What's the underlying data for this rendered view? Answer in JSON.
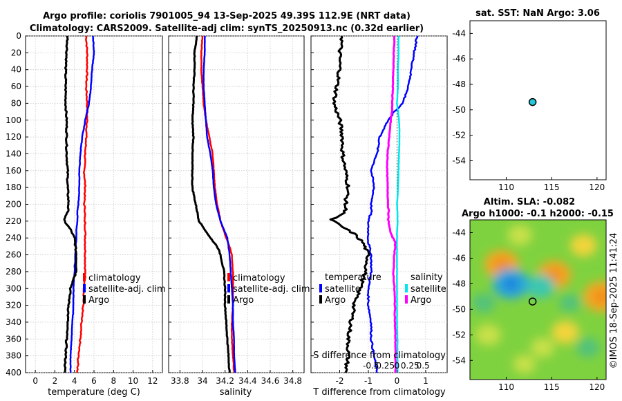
{
  "header": {
    "title_line1": "Argo profile: coriolis 7901005_94 13-Sep-2025 49.39S 112.9E (NRT data)",
    "title_line2": "Climatology: CARS2009. Satellite-adj clim: synTS_20250913.nc (0.32d earlier)"
  },
  "colors": {
    "climatology": "#ff0000",
    "satellite": "#0000ff",
    "argo": "#000000",
    "salinity_satellite": "#00e5ee",
    "salinity_argo": "#ff00ff"
  },
  "chart_data": [
    {
      "type": "line",
      "panel": "temperature",
      "xlabel": "temperature (deg C)",
      "xlim": [
        -1,
        13
      ],
      "xticks": [
        "0",
        "2",
        "4",
        "6",
        "8",
        "10",
        "12"
      ],
      "xtick_values": [
        0,
        2,
        4,
        6,
        8,
        10,
        12
      ],
      "ylim": [
        0,
        400
      ],
      "yticks": [
        "0",
        "20",
        "40",
        "60",
        "80",
        "100",
        "120",
        "140",
        "160",
        "180",
        "200",
        "220",
        "240",
        "260",
        "280",
        "300",
        "320",
        "340",
        "360",
        "380",
        "400"
      ],
      "ytick_values": [
        0,
        20,
        40,
        60,
        80,
        100,
        120,
        140,
        160,
        180,
        200,
        220,
        240,
        260,
        280,
        300,
        320,
        340,
        360,
        380,
        400
      ],
      "depth": [
        0,
        20,
        40,
        60,
        80,
        100,
        120,
        140,
        160,
        180,
        200,
        210,
        218,
        222,
        230,
        240,
        260,
        280,
        300,
        320,
        340,
        360,
        380,
        400
      ],
      "series": [
        {
          "name": "climatology",
          "values": [
            5.2,
            5.3,
            5.3,
            5.2,
            5.3,
            5.3,
            5.2,
            5.1,
            5.0,
            5.1,
            5.0,
            5.1,
            5.0,
            5.1,
            5.1,
            5.1,
            5.1,
            5.1,
            5.0,
            4.9,
            4.7,
            4.6,
            4.4,
            4.3
          ]
        },
        {
          "name": "satellite-adj. clim",
          "values": [
            5.9,
            6.0,
            5.8,
            5.7,
            5.5,
            5.1,
            4.8,
            4.6,
            4.5,
            4.5,
            4.4,
            4.3,
            4.3,
            4.3,
            4.2,
            4.2,
            4.1,
            4.0,
            3.9,
            3.9,
            3.8,
            3.7,
            3.6,
            3.6
          ]
        },
        {
          "name": "Argo",
          "values": [
            3.3,
            3.2,
            3.1,
            3.1,
            3.1,
            3.2,
            3.2,
            3.2,
            3.3,
            3.3,
            3.4,
            3.3,
            2.9,
            3.1,
            3.6,
            4.0,
            4.2,
            4.2,
            3.6,
            3.4,
            3.3,
            3.2,
            3.1,
            3.0
          ]
        }
      ],
      "legend": [
        "climatology",
        "satellite-adj. clim",
        "Argo"
      ]
    },
    {
      "type": "line",
      "panel": "salinity",
      "xlabel": "salinity",
      "xlim": [
        33.7,
        34.9
      ],
      "xticks": [
        "33.8",
        "34",
        "34.2",
        "34.4",
        "34.6",
        "34.8"
      ],
      "xtick_values": [
        33.8,
        34.0,
        34.2,
        34.4,
        34.6,
        34.8
      ],
      "ylim": [
        0,
        400
      ],
      "depth": [
        0,
        20,
        40,
        60,
        80,
        100,
        120,
        140,
        160,
        180,
        200,
        220,
        240,
        250,
        260,
        280,
        300,
        320,
        340,
        360,
        380,
        400
      ],
      "series": [
        {
          "name": "climatology",
          "values": [
            34.0,
            33.99,
            33.99,
            34.0,
            34.01,
            34.03,
            34.06,
            34.09,
            34.1,
            34.11,
            34.13,
            34.16,
            34.21,
            34.24,
            34.26,
            34.27,
            34.27,
            34.27,
            34.26,
            34.26,
            34.27,
            34.28
          ]
        },
        {
          "name": "satellite-adj. clim",
          "values": [
            34.02,
            34.02,
            34.01,
            34.01,
            34.02,
            34.03,
            34.04,
            34.07,
            34.09,
            34.1,
            34.12,
            34.16,
            34.22,
            34.23,
            34.24,
            34.25,
            34.26,
            34.27,
            34.27,
            34.28,
            34.28,
            34.29
          ]
        },
        {
          "name": "Argo",
          "values": [
            33.95,
            33.93,
            33.93,
            33.92,
            33.92,
            33.91,
            33.92,
            33.91,
            33.91,
            33.91,
            33.94,
            33.97,
            34.07,
            34.13,
            34.16,
            34.19,
            34.2,
            34.2,
            34.21,
            34.22,
            34.23,
            34.24
          ]
        }
      ],
      "legend": [
        "climatology",
        "satellite-adj. clim",
        "Argo"
      ]
    },
    {
      "type": "line",
      "panel": "difference",
      "xlabel": "T difference from climatology",
      "xlim": [
        -3,
        1.75
      ],
      "xticks": [
        "-2",
        "-1",
        "0",
        "1"
      ],
      "xtick_values": [
        -2,
        -1,
        0,
        1
      ],
      "top_axis_label": "S difference from climatology",
      "top_ticks": [
        "-0.5",
        "-0.25",
        "0",
        "0.25",
        "0.5"
      ],
      "top_tick_values": [
        -0.5,
        -0.25,
        0,
        0.25,
        0.5
      ],
      "ylim": [
        0,
        400
      ],
      "depth": [
        0,
        20,
        40,
        60,
        80,
        90,
        100,
        120,
        140,
        160,
        180,
        200,
        210,
        218,
        225,
        235,
        245,
        260,
        280,
        300,
        320,
        340,
        360,
        380,
        400
      ],
      "series": [
        {
          "name": "temperature satellite",
          "values": [
            0.7,
            0.6,
            0.5,
            0.4,
            0.2,
            -0.1,
            -0.3,
            -0.6,
            -0.7,
            -0.9,
            -0.8,
            -0.9,
            -0.9,
            -1.0,
            -1.0,
            -1.0,
            -1.0,
            -0.9,
            -0.9,
            -1.0,
            -1.0,
            -0.9,
            -0.9,
            -0.8,
            -0.7
          ]
        },
        {
          "name": "temperature Argo",
          "values": [
            -1.9,
            -2.0,
            -2.0,
            -2.1,
            -2.2,
            -2.1,
            -2.0,
            -1.9,
            -1.9,
            -1.8,
            -1.7,
            -1.8,
            -1.8,
            -2.3,
            -2.0,
            -1.5,
            -1.2,
            -1.0,
            -1.1,
            -1.3,
            -1.5,
            -1.6,
            -1.7,
            -1.7,
            -1.8
          ]
        },
        {
          "name": "salinity satellite",
          "values": [
            0.03,
            0.03,
            0.02,
            0.02,
            0.0,
            0.02,
            0.04,
            0.05,
            0.04,
            0.03,
            0.02,
            0.0,
            0.01,
            0.01,
            0.01,
            0.0,
            0.0,
            0.0,
            0.0,
            0.0,
            0.0,
            0.0,
            0.01,
            0.01,
            0.01
          ]
        },
        {
          "name": "salinity Argo",
          "values": [
            -0.05,
            -0.06,
            -0.07,
            -0.08,
            -0.09,
            -0.1,
            -0.12,
            -0.15,
            -0.18,
            -0.19,
            -0.18,
            -0.17,
            -0.16,
            -0.17,
            -0.15,
            -0.12,
            -0.03,
            -0.05,
            -0.07,
            -0.05,
            -0.04,
            -0.04,
            -0.03,
            -0.03,
            -0.03
          ]
        }
      ],
      "legend_temp_title": "temperature",
      "legend_sal_title": "salinity",
      "legend_satellite": "satellite",
      "legend_argo": "Argo"
    },
    {
      "type": "scatter",
      "panel": "map-sst",
      "title": "sat. SST: NaN Argo: 3.06",
      "xlim": [
        106,
        121
      ],
      "ylim": [
        -55.5,
        -43
      ],
      "xticks": [
        "110",
        "115",
        "120"
      ],
      "xtick_values": [
        110,
        115,
        120
      ],
      "yticks": [
        "-44",
        "-46",
        "-48",
        "-50",
        "-52",
        "-54"
      ],
      "ytick_values": [
        -44,
        -46,
        -48,
        -50,
        -52,
        -54
      ],
      "points": [
        {
          "lon": 112.9,
          "lat": -49.39
        }
      ]
    },
    {
      "type": "heatmap",
      "panel": "map-sla",
      "title_line1": "Altim. SLA: -0.082",
      "title_line2": "Argo h1000: -0.1 h2000: -0.15",
      "xlim": [
        106,
        121
      ],
      "ylim": [
        -55.5,
        -43
      ],
      "xticks": [
        "110",
        "115",
        "120"
      ],
      "xtick_values": [
        110,
        115,
        120
      ],
      "yticks": [
        "-44",
        "-46",
        "-48",
        "-50",
        "-52",
        "-54"
      ],
      "ytick_values": [
        -44,
        -46,
        -48,
        -50,
        -52,
        -54
      ],
      "points": [
        {
          "lon": 112.9,
          "lat": -49.39
        }
      ],
      "blobs": [
        {
          "lon": 109.5,
          "lat": -46.5,
          "v": 0.9
        },
        {
          "lon": 115.3,
          "lat": -47.3,
          "v": 0.85
        },
        {
          "lon": 120.5,
          "lat": -49,
          "v": 1.0
        },
        {
          "lon": 113.8,
          "lat": -48.2,
          "v": -0.6
        },
        {
          "lon": 110.5,
          "lat": -48.0,
          "v": -1.0
        },
        {
          "lon": 118.5,
          "lat": -45,
          "v": 0.5
        },
        {
          "lon": 111.5,
          "lat": -44.2,
          "v": 0.4
        },
        {
          "lon": 108,
          "lat": -52,
          "v": 0.45
        },
        {
          "lon": 116.5,
          "lat": -51.8,
          "v": 0.55
        },
        {
          "lon": 119,
          "lat": -53,
          "v": -0.35
        },
        {
          "lon": 112,
          "lat": -54.3,
          "v": 0.3
        },
        {
          "lon": 107.5,
          "lat": -49.5,
          "v": -0.35
        },
        {
          "lon": 117,
          "lat": -49.5,
          "v": -0.25
        },
        {
          "lon": 114,
          "lat": -53,
          "v": 0.35
        }
      ]
    }
  ],
  "credit": "©IMOS 18-Sep-2025 11:41:24"
}
